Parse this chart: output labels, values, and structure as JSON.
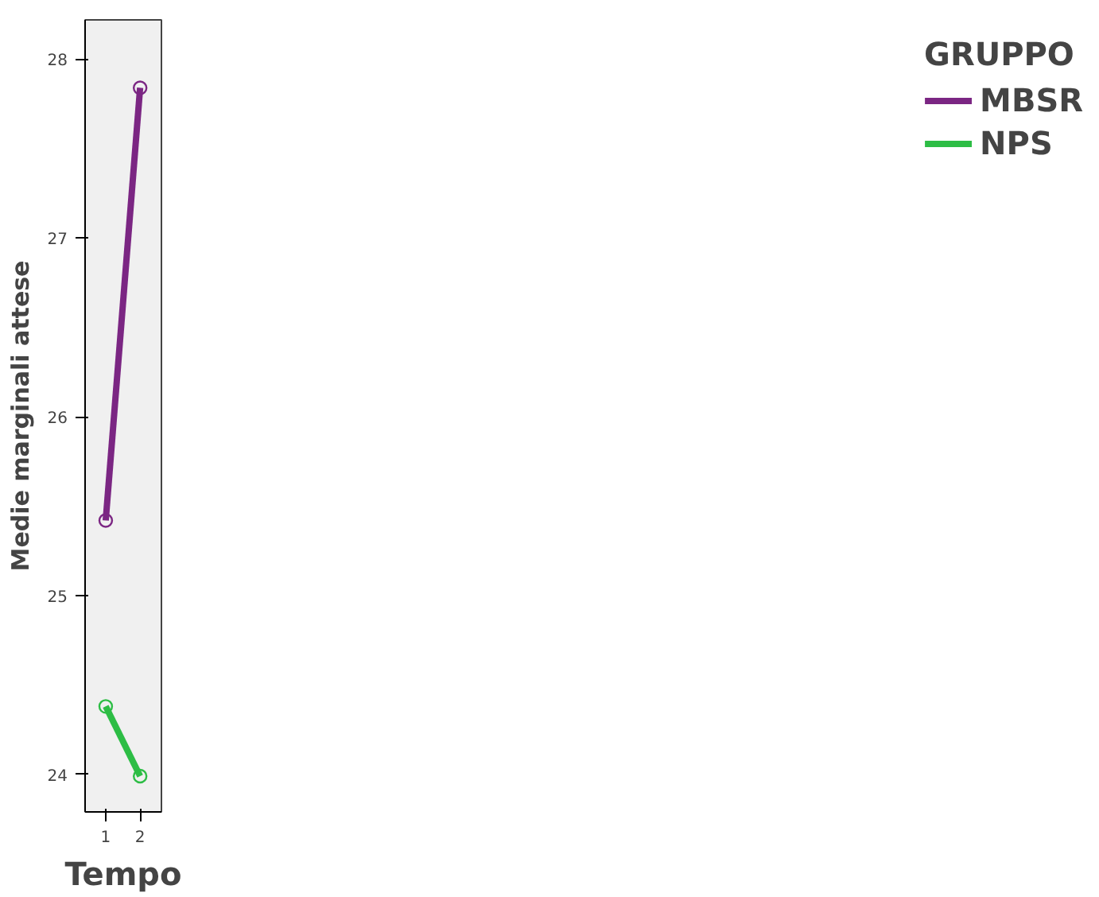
{
  "chart_data": {
    "type": "line",
    "xlabel": "Tempo",
    "ylabel": "Medie marginali attese",
    "legend_title": "GRUPPO",
    "x": [
      1,
      2
    ],
    "xlim": [
      0.4,
      2.62
    ],
    "xticks": [
      1,
      2
    ],
    "ylim": [
      23.79,
      28.22
    ],
    "yticks": [
      24,
      25,
      26,
      27,
      28
    ],
    "series": [
      {
        "name": "MBSR",
        "color": "#7b2683",
        "values": [
          25.42,
          27.84
        ]
      },
      {
        "name": "NPS",
        "color": "#2dbd45",
        "values": [
          24.38,
          23.99
        ]
      }
    ],
    "marker": "circle",
    "grid": false,
    "legend": "top right"
  }
}
